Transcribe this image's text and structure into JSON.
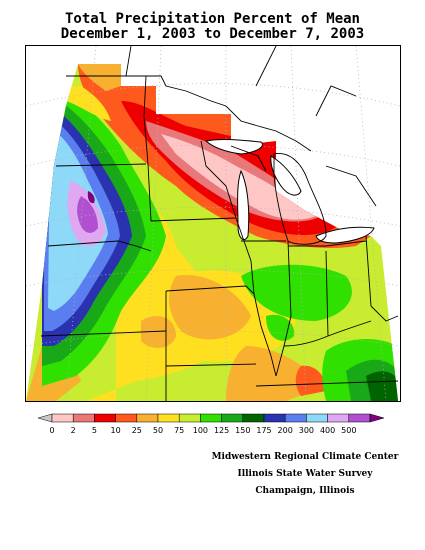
{
  "title_line1": "Total Precipitation Percent of Mean",
  "title_line2": "December 1, 2003 to December 7, 2003",
  "legend": {
    "bins": [
      {
        "label": "0",
        "color": "#ffc6c6"
      },
      {
        "label": "2",
        "color": "#e8787a"
      },
      {
        "label": "5",
        "color": "#ee0000"
      },
      {
        "label": "10",
        "color": "#ff5a1e"
      },
      {
        "label": "25",
        "color": "#f8b030"
      },
      {
        "label": "50",
        "color": "#ffe020"
      },
      {
        "label": "75",
        "color": "#c8ec30"
      },
      {
        "label": "100",
        "color": "#30e000"
      },
      {
        "label": "125",
        "color": "#18a818"
      },
      {
        "label": "150",
        "color": "#006400"
      },
      {
        "label": "175",
        "color": "#2a32b0"
      },
      {
        "label": "200",
        "color": "#5a7ef0"
      },
      {
        "label": "300",
        "color": "#8ed8f8"
      },
      {
        "label": "400",
        "color": "#e0a8f0"
      },
      {
        "label": "500",
        "color": "#b050d0"
      }
    ],
    "left_arrow_color": "#c8c8c8",
    "right_arrow_color": "#800080"
  },
  "credits": {
    "line1": "Midwestern Regional Climate Center",
    "line2": "Illinois State Water Survey",
    "line3": "Champaign, Illinois"
  }
}
